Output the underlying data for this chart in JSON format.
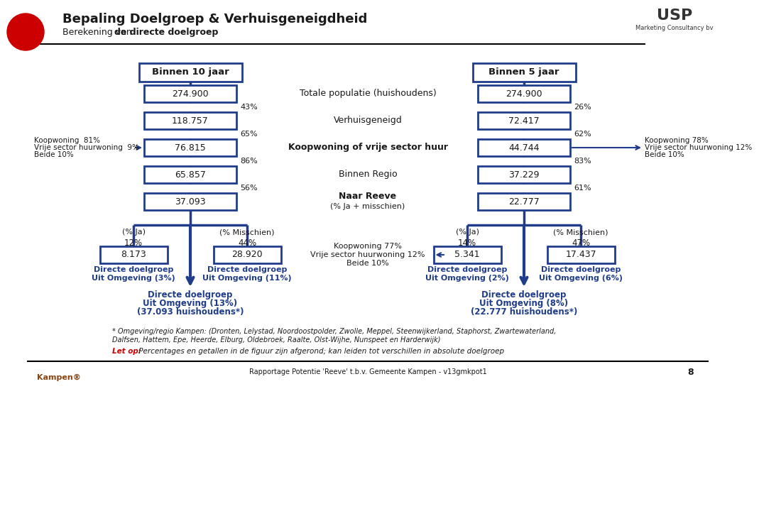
{
  "title": "Bepaling Doelgroep & Verhuisgeneigdheid",
  "subtitle_normal": "Berekening van ",
  "subtitle_bold": "de directe doelgroep",
  "bg_color": "#ffffff",
  "blue": "#1f3d8a",
  "dark": "#1a1a1a",
  "red": "#cc0000",
  "left_header": "Binnen 10 jaar",
  "right_header": "Binnen 5 jaar",
  "left_boxes": [
    "274.900",
    "118.757",
    "76.815",
    "65.857",
    "37.093"
  ],
  "right_boxes": [
    "274.900",
    "72.417",
    "44.744",
    "37.229",
    "22.777"
  ],
  "left_pcts": [
    "43%",
    "65%",
    "86%",
    "56%"
  ],
  "right_pcts": [
    "26%",
    "62%",
    "83%",
    "61%"
  ],
  "center_labels": [
    "Totale populatie (huishoudens)",
    "Verhuisgeneigd",
    "Koopwoning of vrije sector huur",
    "Binnen Regio",
    "Naar Reeve"
  ],
  "center_sublabel": "(% Ja + misschien)",
  "center_label_bold": [
    false,
    false,
    true,
    false,
    true
  ],
  "left_side_line1": "Koopwoning  81%",
  "left_side_line2": "Vrije sector huurwoning  9%",
  "left_side_line3": "Beide 10%",
  "right_side_line1": "Koopwoning 78%",
  "right_side_line2": "Vrije sector huurwoning 12%",
  "right_side_line3": "Beide 10%",
  "left_ja_label": "(% Ja)",
  "left_ja_pct": "12%",
  "left_ja_val": "8.173",
  "left_ja_desc1": "Directe doelgroep",
  "left_ja_desc2": "Uit Omgeving (3%)",
  "left_mis_label": "(% Misschien)",
  "left_mis_pct": "44%",
  "left_mis_val": "28.920",
  "left_mis_desc1": "Directe doelgroep",
  "left_mis_desc2": "Uit Omgeving (11%)",
  "left_sum1": "Directe doelgroep",
  "left_sum2": "Uit Omgeving (13%)",
  "left_sum3": "(37.093 huishoudens*)",
  "right_ja_label": "(% Ja)",
  "right_ja_pct": "14%",
  "right_ja_val": "5.341",
  "right_ja_desc1": "Directe doelgroep",
  "right_ja_desc2": "Uit Omgeving (2%)",
  "right_mis_label": "(% Misschien)",
  "right_mis_pct": "47%",
  "right_mis_val": "17.437",
  "right_mis_desc1": "Directe doelgroep",
  "right_mis_desc2": "Uit Omgeving (6%)",
  "right_sum1": "Directe doelgroep",
  "right_sum2": "Uit Omgeving (8%)",
  "right_sum3": "(22.777 huishoudens*)",
  "center_koop1": "Koopwoning 77%",
  "center_koop2": "Vrije sector huurwoning 12%",
  "center_koop3": "Beide 10%",
  "footnote1": "* Omgeving/regio Kampen: (Dronten, Lelystad, Noordoostpolder, Zwolle, Meppel, Steenwijkerland, Staphorst, Zwartewaterland,",
  "footnote2": "Dalfsen, Hattem, Epe, Heerde, Elburg, Oldebroek, Raalte, Olst-Wijhe, Nunspeet en Harderwijk)",
  "footnote3_bold": "Let op:",
  "footnote3_rest": " Percentages en getallen in de figuur zijn afgerond; kan leiden tot verschillen in absolute doelgroep",
  "footer": "Rapportage Potentie 'Reeve' t.b.v. Gemeente Kampen - v13gmkpot1",
  "page_num": "8"
}
